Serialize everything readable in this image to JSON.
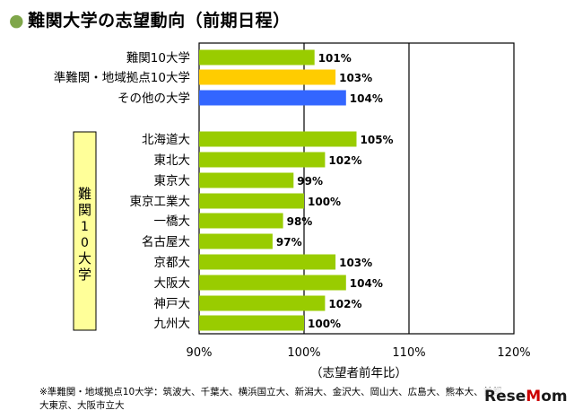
{
  "title": "難関大学の志望動向（前期日程）",
  "group_label": "難関10大学",
  "footnote": "※準難関・地域拠点10大学：筑波大、千葉大、横浜国立大、新潟大、金沢大、岡山大、広島大、熊本大、首都大東京、大阪市立大",
  "watermark": {
    "pre": "Rese",
    "accent": "M",
    "post": "om"
  },
  "colors": {
    "default_bar": "#99cc00",
    "orange_bar": "#ffcc00",
    "blue_bar": "#3366ff",
    "group_box": "#ffff99"
  },
  "chart_data": {
    "type": "bar",
    "orientation": "horizontal",
    "xlabel": "（志望者前年比）",
    "xlim": [
      90,
      120
    ],
    "xticks": [
      "90%",
      "100%",
      "110%",
      "120%"
    ],
    "tick_values": [
      90,
      100,
      110,
      120
    ],
    "grid": "vertical lines at 100% and 110%",
    "categories": [
      "難関10大学",
      "準難関・地域拠点10大学",
      "その他の大学",
      "北海道大",
      "東北大",
      "東京大",
      "東京工業大",
      "一橋大",
      "名古屋大",
      "京都大",
      "大阪大",
      "神戸大",
      "九州大"
    ],
    "values": [
      101,
      103,
      104,
      105,
      102,
      99,
      100,
      98,
      97,
      103,
      104,
      102,
      100
    ],
    "value_labels": [
      "101%",
      "103%",
      "104%",
      "105%",
      "102%",
      "99%",
      "100%",
      "98%",
      "97%",
      "103%",
      "104%",
      "102%",
      "100%"
    ],
    "bar_colors": [
      "#99cc00",
      "#ffcc00",
      "#3366ff",
      "#99cc00",
      "#99cc00",
      "#99cc00",
      "#99cc00",
      "#99cc00",
      "#99cc00",
      "#99cc00",
      "#99cc00",
      "#99cc00",
      "#99cc00"
    ]
  }
}
